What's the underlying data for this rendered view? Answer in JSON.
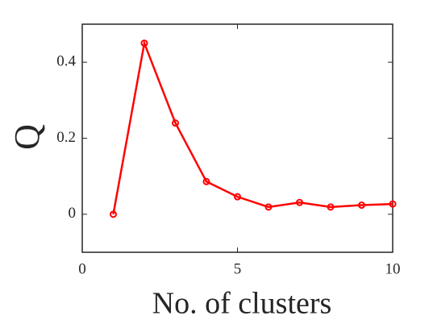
{
  "chart_data": {
    "type": "line",
    "x_label": "No. of clusters",
    "y_label": "Q",
    "x": [
      1,
      2,
      3,
      4,
      5,
      6,
      7,
      8,
      9,
      10
    ],
    "series": [
      {
        "color": "#ff0000",
        "values": [
          0,
          0.45,
          0.24,
          0.086,
          0.046,
          0.019,
          0.031,
          0.019,
          0.024,
          0.027
        ]
      }
    ],
    "xlim": [
      0,
      10
    ],
    "xticks": [
      0,
      5,
      10
    ],
    "ylim": [
      -0.1,
      0.5
    ],
    "yticks": [
      0,
      0.2,
      0.4
    ],
    "marker": "circle",
    "box": true
  }
}
